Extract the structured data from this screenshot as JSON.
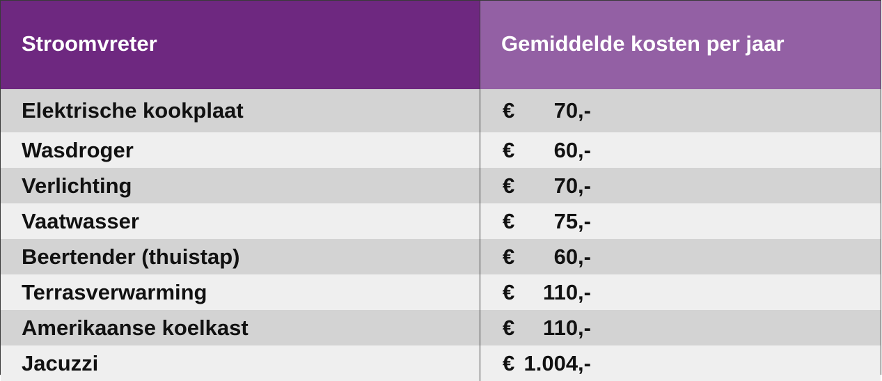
{
  "table": {
    "headers": {
      "item": "Stroomvreter",
      "cost": "Gemiddelde kosten per jaar"
    },
    "colors": {
      "header_left": "#6e2880",
      "header_right": "#9360a4",
      "row_dark": "#d3d3d3",
      "row_light": "#efefef"
    },
    "rows": [
      {
        "item": "Elektrische kookplaat",
        "currency": "€",
        "amount": "70,-"
      },
      {
        "item": "Wasdroger",
        "currency": "€",
        "amount": "60,-"
      },
      {
        "item": "Verlichting",
        "currency": "€",
        "amount": "70,-"
      },
      {
        "item": "Vaatwasser",
        "currency": "€",
        "amount": "75,-"
      },
      {
        "item": "Beertender (thuistap)",
        "currency": "€",
        "amount": "60,-"
      },
      {
        "item": "Terrasverwarming",
        "currency": "€",
        "amount": "110,-"
      },
      {
        "item": "Amerikaanse koelkast",
        "currency": "€",
        "amount": "110,-"
      },
      {
        "item": "Jacuzzi",
        "currency": "€",
        "amount": "1.004,-"
      }
    ]
  }
}
